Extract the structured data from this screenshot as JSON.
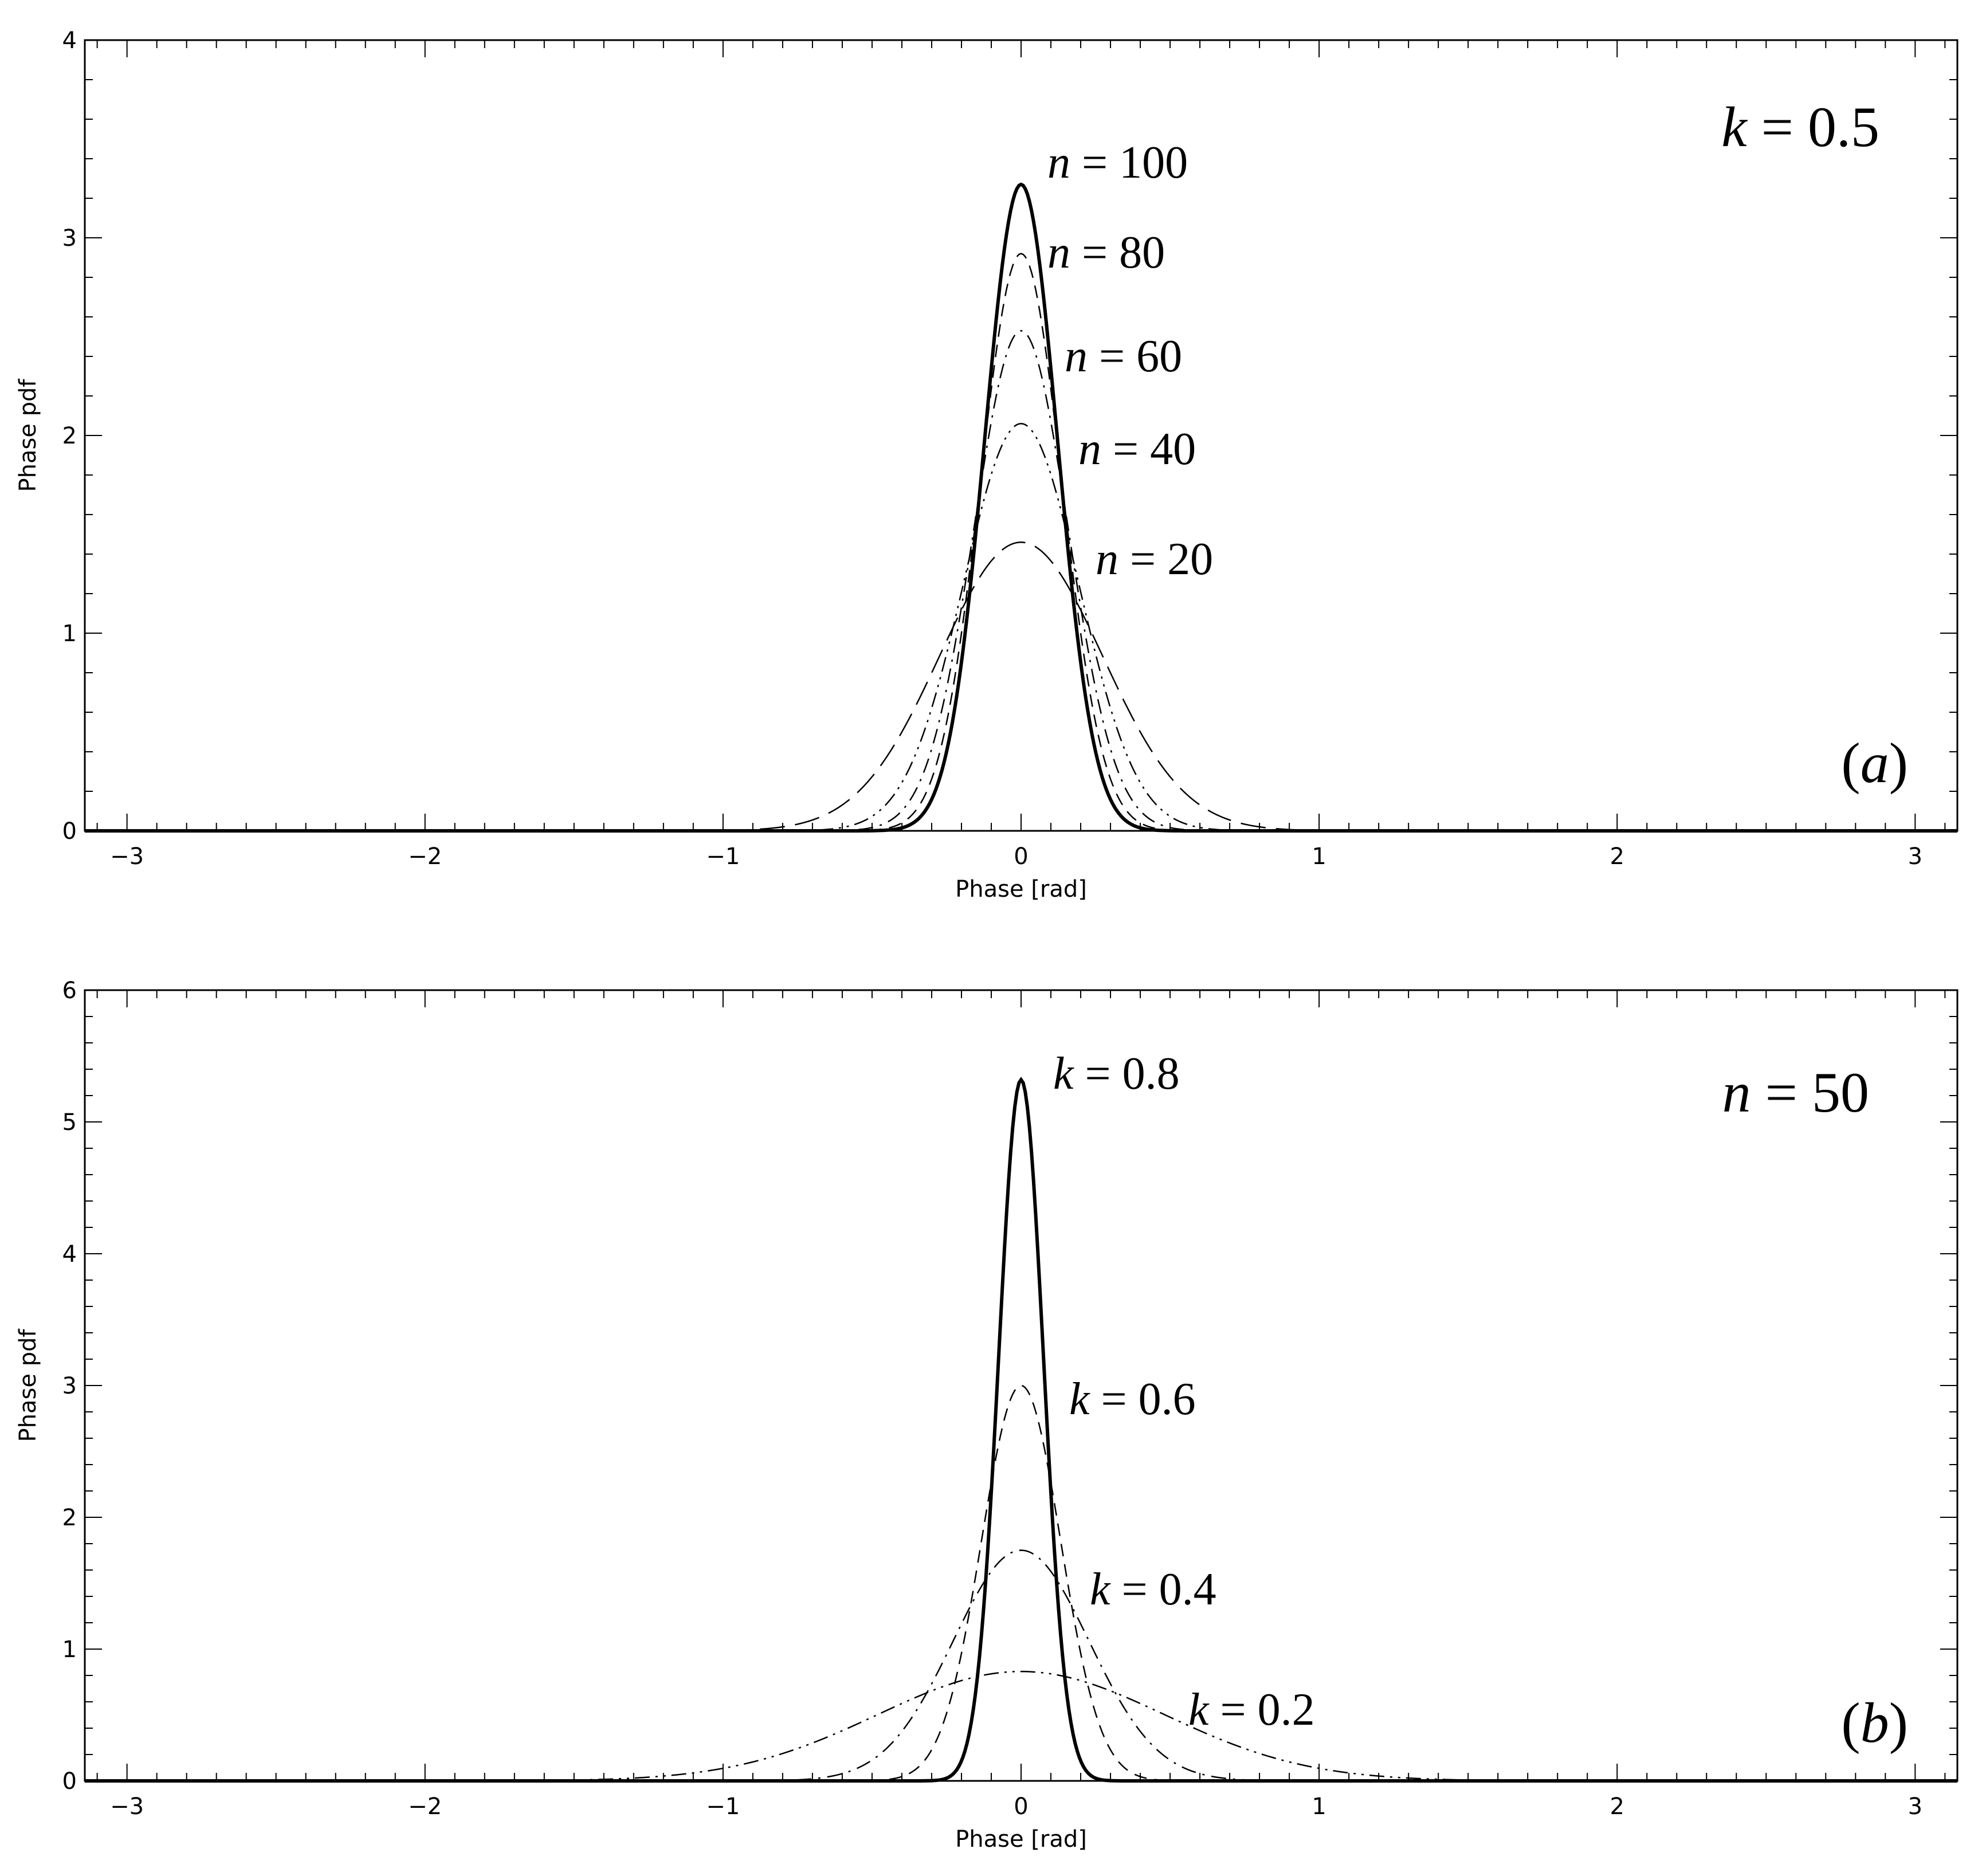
{
  "chart_data": [
    {
      "panel": "(a)",
      "type": "line",
      "xlabel": "Phase [rad]",
      "ylabel": "Phase pdf",
      "xlim": [
        -3.14159,
        3.14159
      ],
      "ylim": [
        0,
        4
      ],
      "xticks": [
        "-3",
        "-2",
        "-1",
        "0",
        "1",
        "2",
        "3"
      ],
      "yticks": [
        "0",
        "1",
        "2",
        "3",
        "4"
      ],
      "annotation": {
        "var": "k",
        "eq": " = ",
        "val": "0.5"
      },
      "series": [
        {
          "name": "n = 100",
          "var": "n",
          "eq": " = ",
          "val": "100",
          "peak": 3.27,
          "style": "solid"
        },
        {
          "name": "n = 80",
          "var": "n",
          "eq": " = ",
          "val": "80",
          "peak": 2.92,
          "style": "dash"
        },
        {
          "name": "n = 60",
          "var": "n",
          "eq": " = ",
          "val": "60",
          "peak": 2.53,
          "style": "dashdot"
        },
        {
          "name": "n = 40",
          "var": "n",
          "eq": " = ",
          "val": "40",
          "peak": 2.06,
          "style": "dashdotdot"
        },
        {
          "name": "n = 20",
          "var": "n",
          "eq": " = ",
          "val": "20",
          "peak": 1.46,
          "style": "longdash"
        }
      ]
    },
    {
      "panel": "(b)",
      "type": "line",
      "xlabel": "Phase [rad]",
      "ylabel": "Phase pdf",
      "xlim": [
        -3.14159,
        3.14159
      ],
      "ylim": [
        0,
        6
      ],
      "xticks": [
        "-3",
        "-2",
        "-1",
        "0",
        "1",
        "2",
        "3"
      ],
      "yticks": [
        "0",
        "1",
        "2",
        "3",
        "4",
        "5",
        "6"
      ],
      "annotation": {
        "var": "n",
        "eq": " = ",
        "val": "50"
      },
      "series": [
        {
          "name": "k = 0.8",
          "var": "k",
          "eq": " = ",
          "val": "0.8",
          "peak": 5.32,
          "style": "solid"
        },
        {
          "name": "k = 0.6",
          "var": "k",
          "eq": " = ",
          "val": "0.6",
          "peak": 3.0,
          "style": "dash"
        },
        {
          "name": "k = 0.4",
          "var": "k",
          "eq": " = ",
          "val": "0.4",
          "peak": 1.75,
          "style": "dashdot"
        },
        {
          "name": "k = 0.2",
          "var": "k",
          "eq": " = ",
          "val": "0.2",
          "peak": 0.83,
          "style": "dashdotdot"
        }
      ]
    }
  ],
  "panel_labels": {
    "a": "a",
    "b": "b"
  }
}
